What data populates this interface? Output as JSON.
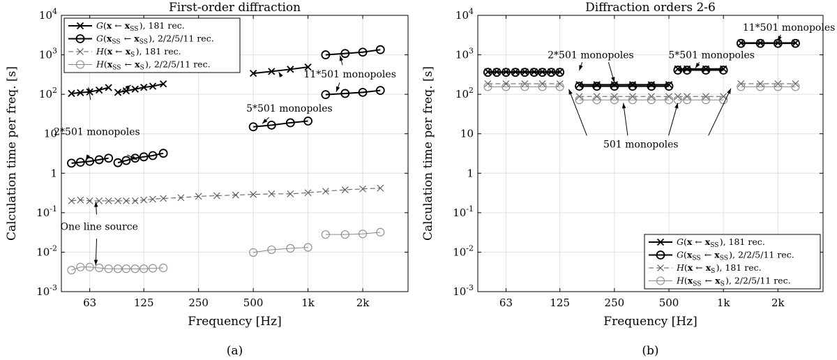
{
  "chart_data": [
    {
      "type": "line",
      "panel_label": "(a)",
      "title": "First-order diffraction",
      "xlabel": "Frequency [Hz]",
      "ylabel": "Calculation time per freq. [s]",
      "xscale": "log",
      "yscale": "log",
      "xlim": [
        44,
        3550
      ],
      "ylim": [
        0.001,
        10000
      ],
      "xticks": [
        63,
        125,
        250,
        500,
        1000,
        2000
      ],
      "xtick_labels": [
        "63",
        "125",
        "250",
        "500",
        "1k",
        "2k"
      ],
      "yticks": [
        0.001,
        0.01,
        0.1,
        1,
        10,
        100,
        1000,
        10000
      ],
      "ytick_labels": [
        [
          "10",
          "-3"
        ],
        [
          "10",
          "-2"
        ],
        [
          "10",
          "-1"
        ],
        [
          "1",
          ""
        ],
        [
          "10",
          ""
        ],
        [
          "10",
          "2"
        ],
        [
          "10",
          "3"
        ],
        [
          "10",
          "4"
        ]
      ],
      "grid": true,
      "legend_position": "top-left",
      "series": [
        {
          "name": "G(x ← xSS), 181 rec.",
          "style": "G-x",
          "segments": [
            {
              "x": [
                50,
                56,
                63,
                71,
                80
              ],
              "y": [
                105,
                110,
                115,
                128,
                148
              ]
            },
            {
              "x": [
                90,
                100,
                112,
                125,
                140,
                160
              ],
              "y": [
                112,
                122,
                135,
                150,
                160,
                183
              ]
            },
            {
              "x": [
                500,
                630,
                800,
                1000
              ],
              "y": [
                340,
                380,
                430,
                490
              ]
            }
          ]
        },
        {
          "name": "G(xSS ← xSS), 2/2/5/11 rec.",
          "style": "G-o",
          "segments": [
            {
              "x": [
                50,
                56,
                63,
                71,
                80
              ],
              "y": [
                1.8,
                1.9,
                2.0,
                2.2,
                2.4
              ]
            },
            {
              "x": [
                90,
                100,
                112,
                125,
                140,
                160
              ],
              "y": [
                1.85,
                2.1,
                2.4,
                2.6,
                2.8,
                3.2
              ]
            },
            {
              "x": [
                500,
                630,
                800,
                1000
              ],
              "y": [
                15,
                16.5,
                19,
                21
              ]
            },
            {
              "x": [
                1250,
                1600,
                2000,
                2500
              ],
              "y": [
                98,
                105,
                112,
                125
              ]
            },
            {
              "x": [
                1250,
                1600,
                2000,
                2500
              ],
              "y": [
                1000,
                1080,
                1170,
                1350
              ]
            }
          ]
        },
        {
          "name": "H(x ← xS), 181 rec.",
          "style": "H-x",
          "segments": [
            {
              "x": [
                50,
                56,
                63,
                71,
                80,
                90,
                100,
                112,
                125,
                140,
                160,
                200,
                250,
                315,
                400,
                500,
                630,
                800,
                1000,
                1250,
                1600,
                2000,
                2500
              ],
              "y": [
                0.2,
                0.21,
                0.2,
                0.2,
                0.2,
                0.2,
                0.2,
                0.2,
                0.21,
                0.22,
                0.23,
                0.24,
                0.26,
                0.27,
                0.28,
                0.29,
                0.3,
                0.3,
                0.32,
                0.35,
                0.38,
                0.4,
                0.42
              ]
            }
          ]
        },
        {
          "name": "H(xSS ← xS), 2/2/5/11 rec.",
          "style": "H-o",
          "segments": [
            {
              "x": [
                50,
                56,
                63,
                71,
                80,
                90,
                100,
                112,
                125,
                140,
                160
              ],
              "y": [
                0.0035,
                0.0042,
                0.0042,
                0.004,
                0.0038,
                0.0038,
                0.0038,
                0.0038,
                0.0038,
                0.0039,
                0.004
              ]
            },
            {
              "x": [
                500,
                630,
                800,
                1000
              ],
              "y": [
                0.0098,
                0.0115,
                0.0125,
                0.0132
              ]
            },
            {
              "x": [
                1250,
                1600,
                2000,
                2500
              ],
              "y": [
                0.028,
                0.028,
                0.029,
                0.032
              ]
            }
          ]
        }
      ],
      "annotations": [
        {
          "text": "2*501 monopoles",
          "ax": 69,
          "ay": 11.5,
          "arrows": [
            [
              62,
              72,
              150
            ],
            [
              106,
              125,
              170
            ],
            [
              60,
              2.9,
              2.15
            ],
            [
              115,
              2.9,
              2.2
            ]
          ]
        },
        {
          "text": "5*501 monopoles",
          "ax": 790,
          "ay": 45,
          "arrows": [
            [
              690,
              280,
              370
            ],
            [
              560,
              26,
              18
            ]
          ]
        },
        {
          "text": "11*501 monopoles",
          "ax": 1700,
          "ay": 330,
          "arrows": [
            [
              1500,
              550,
              960
            ],
            [
              1430,
              198,
              115
            ]
          ]
        },
        {
          "text": "One line source",
          "ax": 71,
          "ay": 0.045,
          "arrows": [
            [
              68,
              0.09,
              0.19
            ],
            [
              68,
              0.022,
              0.0047
            ]
          ]
        }
      ],
      "legend": [
        {
          "style": "G-x",
          "label": "G(x ← xSS), 181 rec."
        },
        {
          "style": "G-o",
          "label": "G(xSS ← xSS), 2/2/5/11 rec."
        },
        {
          "style": "H-x",
          "label": "H(x ← xS), 181 rec."
        },
        {
          "style": "H-o",
          "label": "H(xSS ← xS), 2/2/5/11 rec."
        }
      ]
    },
    {
      "type": "line",
      "panel_label": "(b)",
      "title": "Diffraction orders 2-6",
      "xlabel": "Frequency [Hz]",
      "ylabel": "Calculation time per freq. [s]",
      "xscale": "log",
      "yscale": "log",
      "xlim": [
        44,
        3550
      ],
      "ylim": [
        0.001,
        10000
      ],
      "xticks": [
        63,
        125,
        250,
        500,
        1000,
        2000
      ],
      "xtick_labels": [
        "63",
        "125",
        "250",
        "500",
        "1k",
        "2k"
      ],
      "yticks": [
        0.001,
        0.01,
        0.1,
        1,
        10,
        100,
        1000,
        10000
      ],
      "ytick_labels": [
        [
          "10",
          "-3"
        ],
        [
          "10",
          "-2"
        ],
        [
          "10",
          "-1"
        ],
        [
          "1",
          ""
        ],
        [
          "10",
          ""
        ],
        [
          "10",
          "2"
        ],
        [
          "10",
          "3"
        ],
        [
          "10",
          "4"
        ]
      ],
      "grid": true,
      "legend_position": "bottom-right",
      "series": [
        {
          "name": "G(x ← xSS), 181 rec.",
          "style": "G-x",
          "segments": [
            {
              "x": [
                50,
                56,
                63,
                71,
                80,
                90,
                100,
                112,
                125
              ],
              "y": [
                370,
                370,
                370,
                370,
                370,
                370,
                370,
                370,
                370
              ]
            },
            {
              "x": [
                160,
                200,
                250,
                315,
                400,
                500
              ],
              "y": [
                175,
                175,
                175,
                175,
                175,
                175
              ]
            },
            {
              "x": [
                560,
                630,
                800,
                1000
              ],
              "y": [
                440,
                440,
                440,
                440
              ]
            },
            {
              "x": [
                1250,
                1600,
                2000,
                2500
              ],
              "y": [
                2000,
                2000,
                2000,
                2000
              ]
            }
          ]
        },
        {
          "name": "G(xSS ← xSS), 2/2/5/11 rec.",
          "style": "G-o",
          "segments": [
            {
              "x": [
                50,
                56,
                63,
                71,
                80,
                90,
                100,
                112,
                125
              ],
              "y": [
                360,
                360,
                360,
                360,
                360,
                360,
                360,
                360,
                360
              ]
            },
            {
              "x": [
                160,
                200,
                250,
                315,
                400,
                500
              ],
              "y": [
                160,
                160,
                160,
                160,
                160,
                160
              ]
            },
            {
              "x": [
                560,
                630,
                800,
                1000
              ],
              "y": [
                410,
                410,
                410,
                410
              ]
            },
            {
              "x": [
                1250,
                1600,
                2000,
                2500
              ],
              "y": [
                1950,
                1950,
                1950,
                1950
              ]
            }
          ]
        },
        {
          "name": "H(x ← xS), 181 rec.",
          "style": "H-x",
          "segments": [
            {
              "x": [
                50,
                63,
                80,
                100,
                125
              ],
              "y": [
                185,
                185,
                185,
                185,
                185
              ]
            },
            {
              "x": [
                160,
                200,
                250,
                315,
                400,
                500
              ],
              "y": [
                88,
                88,
                88,
                88,
                88,
                88
              ]
            },
            {
              "x": [
                560,
                630,
                800,
                1000
              ],
              "y": [
                88,
                88,
                88,
                88
              ]
            },
            {
              "x": [
                1250,
                1600,
                2000,
                2500
              ],
              "y": [
                185,
                185,
                185,
                185
              ]
            }
          ]
        },
        {
          "name": "H(xSS ← xS), 2/2/5/11 rec.",
          "style": "H-o",
          "segments": [
            {
              "x": [
                50,
                63,
                80,
                100,
                125
              ],
              "y": [
                155,
                155,
                155,
                155,
                155
              ]
            },
            {
              "x": [
                160,
                200,
                250,
                315,
                400,
                500
              ],
              "y": [
                72,
                72,
                72,
                72,
                72,
                72
              ]
            },
            {
              "x": [
                560,
                630,
                800,
                1000
              ],
              "y": [
                72,
                72,
                72,
                72
              ]
            },
            {
              "x": [
                1250,
                1600,
                2000,
                2500
              ],
              "y": [
                155,
                155,
                155,
                155
              ]
            }
          ]
        }
      ],
      "annotations": [
        {
          "text": "2*501 monopoles",
          "ax": 185,
          "ay": 1000,
          "arrows": [
            [
              160,
              650,
              400
            ],
            [
              250,
              650,
              200
            ]
          ]
        },
        {
          "text": "5*501 monopoles",
          "ax": 860,
          "ay": 1000,
          "arrows": [
            [
              700,
              650,
              460
            ]
          ]
        },
        {
          "text": "11*501 monopoles",
          "ax": 2300,
          "ay": 5000,
          "arrows": [
            [
              2000,
              3200,
              2200
            ]
          ]
        },
        {
          "text": "501 monopoles",
          "ax": 350,
          "ay": 5.5,
          "arrows": [
            [
              140,
              9,
              135
            ],
            [
              280,
              9,
              60
            ],
            [
              560,
              9,
              60
            ],
            [
              1100,
              9,
              140
            ]
          ]
        }
      ],
      "legend": [
        {
          "style": "G-x",
          "label": "G(x ← xSS), 181 rec."
        },
        {
          "style": "G-o",
          "label": "G(xSS ← xSS), 2/2/5/11 rec."
        },
        {
          "style": "H-x",
          "label": "H(x ← xS), 181 rec."
        },
        {
          "style": "H-o",
          "label": "H(xSS ← xS), 2/2/5/11 rec."
        }
      ]
    }
  ]
}
